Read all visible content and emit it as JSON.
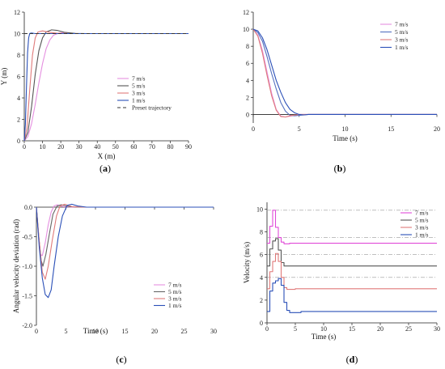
{
  "chart_data": [
    {
      "type": "line",
      "panel_label": "(a)",
      "xlabel": "X (m)",
      "ylabel": "Y (m)",
      "xlim": [
        0,
        90
      ],
      "ylim": [
        0,
        12
      ],
      "xticks": [
        "0",
        "10",
        "20",
        "30",
        "40",
        "50",
        "60",
        "70",
        "80",
        "90"
      ],
      "yticks": [
        "0",
        "2",
        "4",
        "6",
        "8",
        "10",
        "12"
      ],
      "legend_position": "right",
      "series": [
        {
          "name": "7 m/s",
          "color": "#e58fe0",
          "dash": "",
          "points": [
            [
              0,
              0
            ],
            [
              2,
              0.4
            ],
            [
              4,
              1.6
            ],
            [
              6,
              3.4
            ],
            [
              8,
              5.4
            ],
            [
              10,
              7.2
            ],
            [
              12,
              8.6
            ],
            [
              14,
              9.4
            ],
            [
              16,
              9.85
            ],
            [
              19,
              10.05
            ],
            [
              22,
              10.1
            ],
            [
              26,
              10.02
            ],
            [
              30,
              10.0
            ],
            [
              90,
              10.0
            ]
          ]
        },
        {
          "name": "5 m/s",
          "color": "#555555",
          "dash": "",
          "points": [
            [
              0,
              0
            ],
            [
              2,
              0.8
            ],
            [
              4,
              3.2
            ],
            [
              6,
              6.2
            ],
            [
              8,
              8.4
            ],
            [
              10,
              9.6
            ],
            [
              12,
              10.15
            ],
            [
              15,
              10.35
            ],
            [
              18,
              10.3
            ],
            [
              22,
              10.12
            ],
            [
              28,
              10.02
            ],
            [
              35,
              10.0
            ],
            [
              90,
              10.0
            ]
          ]
        },
        {
          "name": "3 m/s",
          "color": "#e07a7a",
          "dash": "",
          "points": [
            [
              0,
              0
            ],
            [
              1.5,
              1.2
            ],
            [
              3,
              4.8
            ],
            [
              4.5,
              8.0
            ],
            [
              6,
              9.6
            ],
            [
              7.5,
              10.15
            ],
            [
              10,
              10.25
            ],
            [
              14,
              10.12
            ],
            [
              18,
              10.03
            ],
            [
              24,
              10.0
            ],
            [
              90,
              10.0
            ]
          ]
        },
        {
          "name": "1 m/s",
          "color": "#2b50b8",
          "dash": "",
          "points": [
            [
              0,
              0
            ],
            [
              0.6,
              1.5
            ],
            [
              1.2,
              5.0
            ],
            [
              1.8,
              8.2
            ],
            [
              2.4,
              9.6
            ],
            [
              3,
              10.02
            ],
            [
              4,
              10.05
            ],
            [
              6,
              10.0
            ],
            [
              90,
              10.0
            ]
          ]
        },
        {
          "name": "Preset trajectory",
          "color": "#333333",
          "dash": "4,3",
          "points": [
            [
              0,
              10
            ],
            [
              90,
              10
            ]
          ]
        }
      ]
    },
    {
      "type": "line",
      "panel_label": "(b)",
      "xlabel": "Time (s)",
      "ylabel": "",
      "xlim": [
        0,
        20
      ],
      "ylim": [
        -1,
        12
      ],
      "xticks": [
        "0",
        "5",
        "10",
        "15",
        "20"
      ],
      "yticks": [
        "0",
        "2",
        "4",
        "6",
        "8",
        "10",
        "12"
      ],
      "legend_position": "top-right",
      "series": [
        {
          "name": "7 m/s",
          "color": "#e58fe0",
          "dash": "",
          "points": [
            [
              0,
              10
            ],
            [
              0.5,
              9.3
            ],
            [
              1,
              7.5
            ],
            [
              1.5,
              5.0
            ],
            [
              2,
              2.5
            ],
            [
              2.5,
              0.6
            ],
            [
              3,
              -0.2
            ],
            [
              3.5,
              -0.3
            ],
            [
              4,
              -0.2
            ],
            [
              5,
              0
            ],
            [
              20,
              0
            ]
          ]
        },
        {
          "name": "5 m/s",
          "color": "#5570c0",
          "dash": "",
          "points": [
            [
              0,
              10
            ],
            [
              0.5,
              9.6
            ],
            [
              1,
              8.6
            ],
            [
              1.5,
              6.8
            ],
            [
              2,
              4.8
            ],
            [
              2.5,
              3.0
            ],
            [
              3,
              1.4
            ],
            [
              3.5,
              0.4
            ],
            [
              4,
              -0.1
            ],
            [
              4.5,
              -0.15
            ],
            [
              5,
              -0.1
            ],
            [
              6,
              0
            ],
            [
              20,
              0
            ]
          ]
        },
        {
          "name": "3 m/s",
          "color": "#e07a7a",
          "dash": "",
          "points": [
            [
              0,
              10
            ],
            [
              0.5,
              9.2
            ],
            [
              1,
              7.2
            ],
            [
              1.5,
              4.6
            ],
            [
              2,
              2.2
            ],
            [
              2.5,
              0.5
            ],
            [
              3,
              -0.25
            ],
            [
              3.5,
              -0.3
            ],
            [
              4,
              -0.15
            ],
            [
              5,
              0
            ],
            [
              20,
              0
            ]
          ]
        },
        {
          "name": "1 m/s",
          "color": "#2b50b8",
          "dash": "",
          "points": [
            [
              0,
              10
            ],
            [
              0.5,
              9.8
            ],
            [
              1,
              9.0
            ],
            [
              1.5,
              7.6
            ],
            [
              2,
              5.8
            ],
            [
              2.5,
              4.0
            ],
            [
              3,
              2.6
            ],
            [
              3.5,
              1.4
            ],
            [
              4,
              0.6
            ],
            [
              4.5,
              0.2
            ],
            [
              5,
              0
            ],
            [
              5.5,
              -0.05
            ],
            [
              6,
              0
            ],
            [
              20,
              0
            ]
          ]
        }
      ]
    },
    {
      "type": "line",
      "panel_label": "(c)",
      "xlabel": "Time (s)",
      "ylabel": "Angular velocity deviation (rad)",
      "xlim": [
        0,
        30
      ],
      "ylim": [
        -2.0,
        0.0
      ],
      "xticks": [
        "0",
        "5",
        "10",
        "15",
        "20",
        "25",
        "30"
      ],
      "yticks": [
        "0.0",
        "-0.5",
        "-1.0",
        "-1.5",
        "-2.0"
      ],
      "legend_position": "bottom-right",
      "series": [
        {
          "name": "7 m/s",
          "color": "#e58fe0",
          "dash": "",
          "points": [
            [
              0,
              0
            ],
            [
              0.3,
              -0.4
            ],
            [
              0.7,
              -0.8
            ],
            [
              1.0,
              -0.82
            ],
            [
              1.5,
              -0.6
            ],
            [
              2,
              -0.3
            ],
            [
              2.5,
              -0.08
            ],
            [
              3,
              0.02
            ],
            [
              3.5,
              0.04
            ],
            [
              4.5,
              0.01
            ],
            [
              6,
              0
            ],
            [
              30,
              0
            ]
          ]
        },
        {
          "name": "5 m/s",
          "color": "#666666",
          "dash": "",
          "points": [
            [
              0,
              0
            ],
            [
              0.4,
              -0.5
            ],
            [
              0.8,
              -0.9
            ],
            [
              1.1,
              -1.0
            ],
            [
              1.6,
              -0.8
            ],
            [
              2.2,
              -0.45
            ],
            [
              2.8,
              -0.12
            ],
            [
              3.5,
              0.02
            ],
            [
              4.2,
              0.04
            ],
            [
              5.5,
              0.01
            ],
            [
              7,
              0
            ],
            [
              30,
              0
            ]
          ]
        },
        {
          "name": "3 m/s",
          "color": "#e07a7a",
          "dash": "",
          "points": [
            [
              0,
              0
            ],
            [
              0.5,
              -0.6
            ],
            [
              1,
              -1.1
            ],
            [
              1.5,
              -1.22
            ],
            [
              2,
              -1.0
            ],
            [
              2.7,
              -0.55
            ],
            [
              3.4,
              -0.15
            ],
            [
              4,
              0.02
            ],
            [
              4.8,
              0.05
            ],
            [
              6,
              0.01
            ],
            [
              8,
              0
            ],
            [
              30,
              0
            ]
          ]
        },
        {
          "name": "1 m/s",
          "color": "#2b50b8",
          "dash": "",
          "points": [
            [
              0,
              0
            ],
            [
              0.5,
              -0.7
            ],
            [
              1,
              -1.2
            ],
            [
              1.5,
              -1.48
            ],
            [
              2,
              -1.53
            ],
            [
              2.5,
              -1.4
            ],
            [
              3,
              -1.0
            ],
            [
              3.7,
              -0.5
            ],
            [
              4.4,
              -0.15
            ],
            [
              5.2,
              0.03
            ],
            [
              6,
              0.05
            ],
            [
              7,
              0.02
            ],
            [
              8.5,
              0
            ],
            [
              30,
              0
            ]
          ]
        }
      ]
    },
    {
      "type": "line",
      "panel_label": "(d)",
      "xlabel": "Time (s)",
      "ylabel": "Velocity (m/s)",
      "xlim": [
        0,
        30
      ],
      "ylim": [
        0,
        10.6
      ],
      "xticks": [
        "0",
        "5",
        "10",
        "15",
        "20",
        "25",
        "30"
      ],
      "yticks": [
        "0",
        "2",
        "4",
        "6",
        "8",
        "10"
      ],
      "legend_position": "top-right",
      "reference_lines": [
        9.9,
        7.5,
        6.0,
        4.0
      ],
      "series": [
        {
          "name": "7 m/s",
          "color": "#e04ad8",
          "dash": "",
          "points": [
            [
              0,
              7.0
            ],
            [
              0.5,
              7.0
            ],
            [
              0.5,
              8.5
            ],
            [
              1.0,
              8.5
            ],
            [
              1.0,
              9.9
            ],
            [
              1.5,
              9.9
            ],
            [
              1.5,
              8.4
            ],
            [
              2.0,
              8.4
            ],
            [
              2.0,
              7.5
            ],
            [
              2.5,
              7.5
            ],
            [
              2.5,
              7.1
            ],
            [
              3,
              7.1
            ],
            [
              3,
              6.95
            ],
            [
              4,
              6.95
            ],
            [
              4,
              7.0
            ],
            [
              30,
              7.0
            ]
          ]
        },
        {
          "name": "5 m/s",
          "color": "#555555",
          "dash": "",
          "points": [
            [
              0,
              5.0
            ],
            [
              0.5,
              5.0
            ],
            [
              0.5,
              6.5
            ],
            [
              1.0,
              6.5
            ],
            [
              1.0,
              7.2
            ],
            [
              1.5,
              7.2
            ],
            [
              1.5,
              7.4
            ],
            [
              2.0,
              7.4
            ],
            [
              2.0,
              6.4
            ],
            [
              2.5,
              6.4
            ],
            [
              2.5,
              5.3
            ],
            [
              3.0,
              5.3
            ],
            [
              3.0,
              5.0
            ],
            [
              30,
              5.0
            ]
          ]
        },
        {
          "name": "3 m/s",
          "color": "#e07a7a",
          "dash": "",
          "points": [
            [
              0,
              3.0
            ],
            [
              0.5,
              3.0
            ],
            [
              0.5,
              4.5
            ],
            [
              1.0,
              4.5
            ],
            [
              1.0,
              5.4
            ],
            [
              1.5,
              5.4
            ],
            [
              1.5,
              6.1
            ],
            [
              2.0,
              6.1
            ],
            [
              2.0,
              5.4
            ],
            [
              2.5,
              5.4
            ],
            [
              2.5,
              4.0
            ],
            [
              3.0,
              4.0
            ],
            [
              3.0,
              3.1
            ],
            [
              3.5,
              3.1
            ],
            [
              3.5,
              2.95
            ],
            [
              5,
              2.95
            ],
            [
              5,
              3.0
            ],
            [
              30,
              3.0
            ]
          ]
        },
        {
          "name": "1 m/s",
          "color": "#2b50b8",
          "dash": "",
          "points": [
            [
              0,
              1.0
            ],
            [
              0.5,
              1.0
            ],
            [
              0.5,
              2.8
            ],
            [
              1.0,
              2.8
            ],
            [
              1.0,
              3.5
            ],
            [
              1.5,
              3.5
            ],
            [
              1.5,
              3.7
            ],
            [
              2.0,
              3.7
            ],
            [
              2.0,
              3.9
            ],
            [
              2.5,
              3.9
            ],
            [
              2.5,
              3.3
            ],
            [
              3.0,
              3.3
            ],
            [
              3.0,
              1.8
            ],
            [
              3.5,
              1.8
            ],
            [
              3.5,
              1.1
            ],
            [
              4.0,
              1.1
            ],
            [
              4.0,
              0.9
            ],
            [
              6,
              0.9
            ],
            [
              6,
              1.0
            ],
            [
              30,
              1.0
            ]
          ]
        }
      ]
    }
  ]
}
